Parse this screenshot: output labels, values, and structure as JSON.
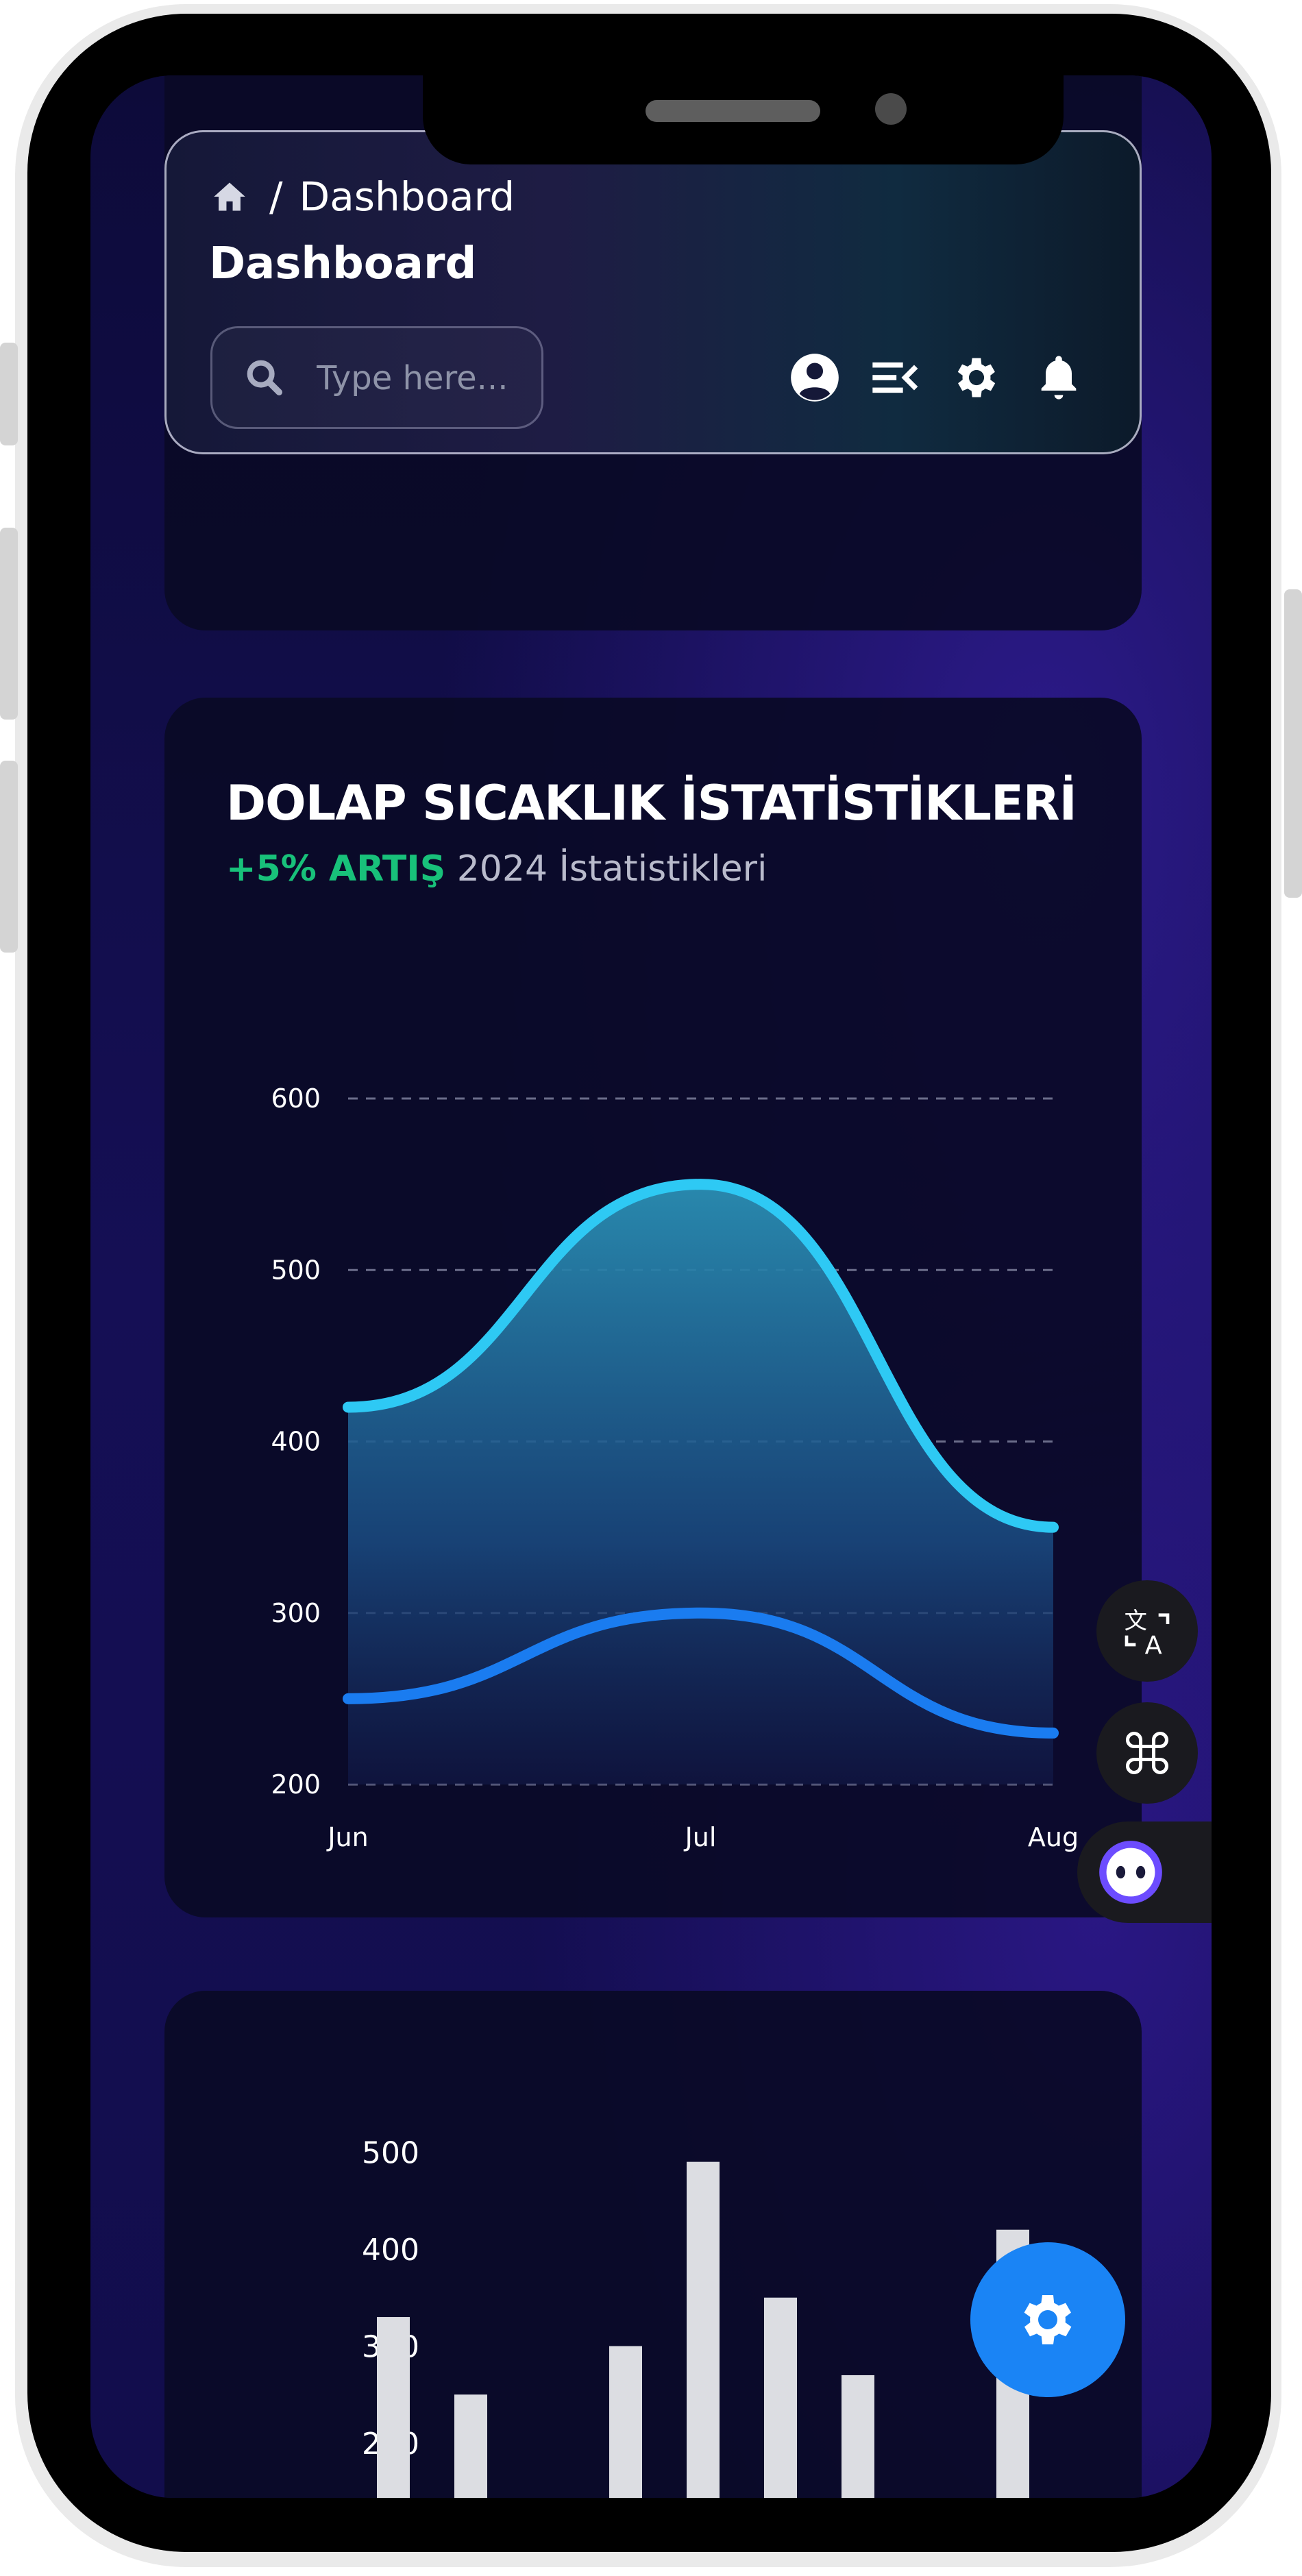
{
  "header": {
    "breadcrumb_page": "Dashboard",
    "title": "Dashboard",
    "search_placeholder": "Type here..."
  },
  "chart_card": {
    "title": "DOLAP SICAKLIK İSTATİSTİKLERİ",
    "increase": "+5% ARTIŞ",
    "subtitle": "2024 İstatistikleri"
  },
  "chart_data": [
    {
      "type": "area",
      "categories": [
        "Jun",
        "Jul",
        "Aug"
      ],
      "ylim": [
        200,
        600
      ],
      "yticks": [
        600,
        500,
        400,
        300,
        200
      ],
      "grid": true,
      "series": [
        {
          "values": [
            420,
            550,
            350
          ],
          "color": "#2ec9f4"
        },
        {
          "values": [
            250,
            300,
            230
          ],
          "color": "#1a7cf0"
        }
      ]
    },
    {
      "type": "bar",
      "yticks": [
        500,
        400,
        300,
        200
      ],
      "values": [
        330,
        250,
        null,
        300,
        490,
        350,
        270,
        null,
        420
      ],
      "color": "#dcdde2"
    }
  ],
  "icons": {
    "home": "home-icon",
    "search": "search-icon",
    "user": "user-circle-icon",
    "menu": "menu-collapse-icon",
    "settings": "gear-icon",
    "notifications": "bell-icon",
    "translate": "translate-icon",
    "command": "command-icon",
    "assistant": "assistant-icon",
    "fab": "gear-icon"
  }
}
